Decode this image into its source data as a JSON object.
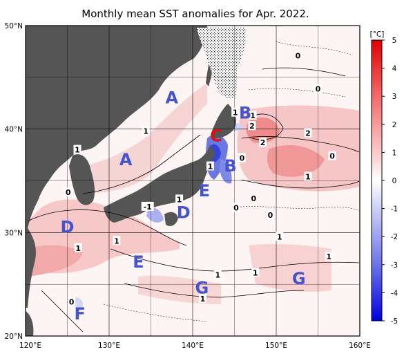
{
  "title": "Monthly mean SST anomalies for Apr. 2022.",
  "axes": {
    "x_ticks": [
      "120°E",
      "130°E",
      "140°E",
      "150°E",
      "160°E"
    ],
    "y_ticks": [
      "50°N",
      "40°N",
      "30°N",
      "20°N"
    ],
    "lon_range": [
      120,
      160
    ],
    "lat_range": [
      20,
      50
    ]
  },
  "colorbar": {
    "unit": "[°C]",
    "ticks": [
      "5",
      "4",
      "3",
      "2",
      "1",
      "0",
      "-1",
      "-2",
      "-3",
      "-4",
      "-5"
    ],
    "min": -5,
    "max": 5
  },
  "regions": [
    {
      "label": "A",
      "lon": 137.5,
      "lat": 43.1
    },
    {
      "label": "A",
      "lon": 132.0,
      "lat": 37.1
    },
    {
      "label": "B",
      "lon": 146.3,
      "lat": 41.6
    },
    {
      "label": "B",
      "lon": 144.5,
      "lat": 36.5
    },
    {
      "label": "C",
      "lon": 142.8,
      "lat": 39.4
    },
    {
      "label": "D",
      "lon": 125.0,
      "lat": 30.6
    },
    {
      "label": "D",
      "lon": 138.9,
      "lat": 32.0
    },
    {
      "label": "E",
      "lon": 141.4,
      "lat": 34.1
    },
    {
      "label": "E",
      "lon": 133.5,
      "lat": 27.2
    },
    {
      "label": "G",
      "lon": 141.1,
      "lat": 24.7
    },
    {
      "label": "G",
      "lon": 152.7,
      "lat": 25.6
    },
    {
      "label": "F",
      "lon": 126.5,
      "lat": 22.2
    }
  ],
  "contour_labels": [
    {
      "text": "1",
      "lon": 126.2,
      "lat": 38.0
    },
    {
      "text": "1",
      "lon": 134.4,
      "lat": 39.8
    },
    {
      "text": "1",
      "lon": 142.1,
      "lat": 36.4
    },
    {
      "text": "1",
      "lon": 138.4,
      "lat": 33.2
    },
    {
      "text": "-1",
      "lon": 134.6,
      "lat": 32.5
    },
    {
      "text": "0",
      "lon": 125.1,
      "lat": 33.9
    },
    {
      "text": "0",
      "lon": 147.3,
      "lat": 33.3
    },
    {
      "text": "0",
      "lon": 145.2,
      "lat": 32.4
    },
    {
      "text": "0",
      "lon": 149.3,
      "lat": 31.7
    },
    {
      "text": "0",
      "lon": 145.9,
      "lat": 37.2
    },
    {
      "text": "0",
      "lon": 152.6,
      "lat": 47.1
    },
    {
      "text": "0",
      "lon": 155.0,
      "lat": 43.9
    },
    {
      "text": "0",
      "lon": 156.7,
      "lat": 37.4
    },
    {
      "text": "1",
      "lon": 145.1,
      "lat": 41.6
    },
    {
      "text": "1",
      "lon": 147.2,
      "lat": 41.3
    },
    {
      "text": "2",
      "lon": 147.1,
      "lat": 40.3
    },
    {
      "text": "2",
      "lon": 148.4,
      "lat": 38.7
    },
    {
      "text": "2",
      "lon": 153.8,
      "lat": 39.6
    },
    {
      "text": "1",
      "lon": 153.8,
      "lat": 35.4
    },
    {
      "text": "1",
      "lon": 130.9,
      "lat": 29.2
    },
    {
      "text": "1",
      "lon": 126.3,
      "lat": 28.5
    },
    {
      "text": "1",
      "lon": 150.4,
      "lat": 29.6
    },
    {
      "text": "1",
      "lon": 156.3,
      "lat": 27.7
    },
    {
      "text": "1",
      "lon": 143.0,
      "lat": 25.9
    },
    {
      "text": "1",
      "lon": 147.5,
      "lat": 26.1
    },
    {
      "text": "1",
      "lon": 141.2,
      "lat": 23.6
    },
    {
      "text": "0",
      "lon": 125.5,
      "lat": 23.3
    }
  ]
}
